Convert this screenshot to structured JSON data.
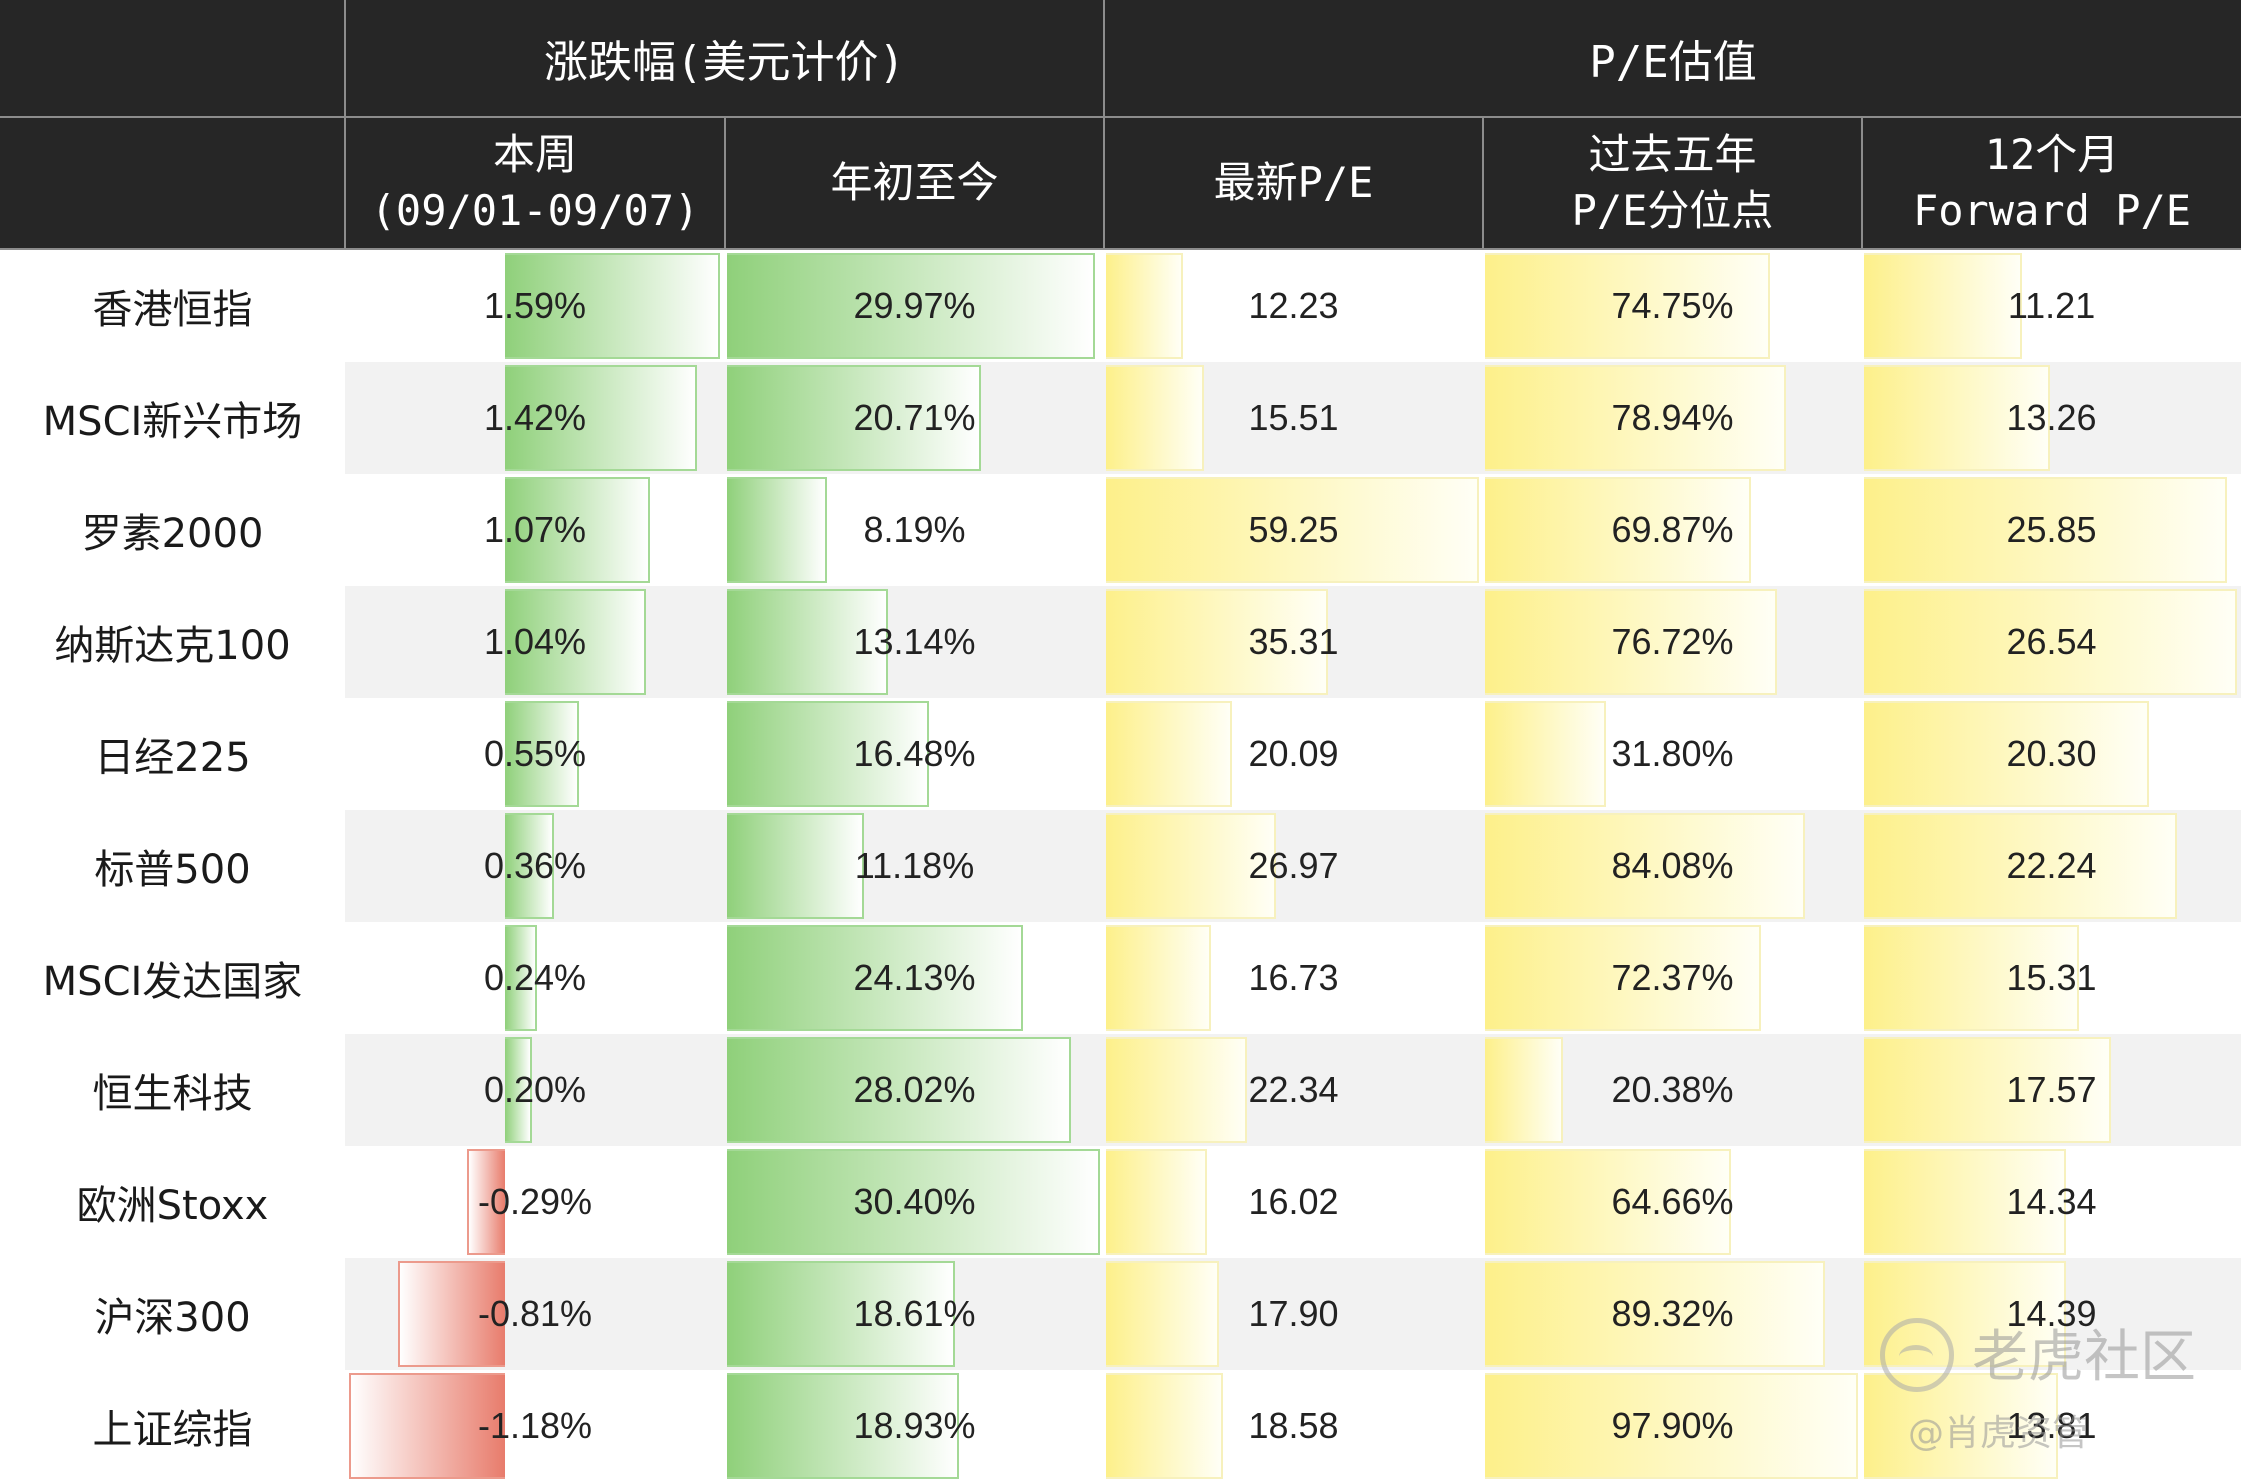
{
  "chart_data": {
    "type": "table",
    "group_headers": [
      "涨跌幅(美元计价)",
      "P/E估值"
    ],
    "columns": [
      {
        "key": "week",
        "lines": [
          "本周",
          "(09/01-09/07)"
        ]
      },
      {
        "key": "ytd",
        "lines": [
          "年初至今"
        ]
      },
      {
        "key": "pe",
        "lines": [
          "最新P/E"
        ]
      },
      {
        "key": "pct5y",
        "lines": [
          "过去五年",
          "P/E分位点"
        ]
      },
      {
        "key": "fpe",
        "lines": [
          "12个月",
          "Forward P/E"
        ]
      }
    ],
    "rows": [
      {
        "name": "香港恒指",
        "week": "1.59%",
        "ytd": "29.97%",
        "pe": "12.23",
        "pct5y": "74.75%",
        "fpe": "11.21"
      },
      {
        "name": "MSCI新兴市场",
        "week": "1.42%",
        "ytd": "20.71%",
        "pe": "15.51",
        "pct5y": "78.94%",
        "fpe": "13.26"
      },
      {
        "name": "罗素2000",
        "week": "1.07%",
        "ytd": "8.19%",
        "pe": "59.25",
        "pct5y": "69.87%",
        "fpe": "25.85"
      },
      {
        "name": "纳斯达克100",
        "week": "1.04%",
        "ytd": "13.14%",
        "pe": "35.31",
        "pct5y": "76.72%",
        "fpe": "26.54"
      },
      {
        "name": "日经225",
        "week": "0.55%",
        "ytd": "16.48%",
        "pe": "20.09",
        "pct5y": "31.80%",
        "fpe": "20.30"
      },
      {
        "name": "标普500",
        "week": "0.36%",
        "ytd": "11.18%",
        "pe": "26.97",
        "pct5y": "84.08%",
        "fpe": "22.24"
      },
      {
        "name": "MSCI发达国家",
        "week": "0.24%",
        "ytd": "24.13%",
        "pe": "16.73",
        "pct5y": "72.37%",
        "fpe": "15.31"
      },
      {
        "name": "恒生科技",
        "week": "0.20%",
        "ytd": "28.02%",
        "pe": "22.34",
        "pct5y": "20.38%",
        "fpe": "17.57"
      },
      {
        "name": "欧洲Stoxx",
        "week": "-0.29%",
        "ytd": "30.40%",
        "pe": "16.02",
        "pct5y": "64.66%",
        "fpe": "14.34"
      },
      {
        "name": "沪深300",
        "week": "-0.81%",
        "ytd": "18.61%",
        "pe": "17.90",
        "pct5y": "89.32%",
        "fpe": "14.39"
      },
      {
        "name": "上证综指",
        "week": "-1.18%",
        "ytd": "18.93%",
        "pe": "18.58",
        "pct5y": "97.90%",
        "fpe": "13.81"
      }
    ],
    "colors": {
      "positive": "#8fd07a",
      "negative": "#e87c6c",
      "valuation": "#fdf08a",
      "header": "#262626"
    }
  },
  "watermark": {
    "line1": "老虎社区",
    "line2": "@肖虎资管"
  }
}
